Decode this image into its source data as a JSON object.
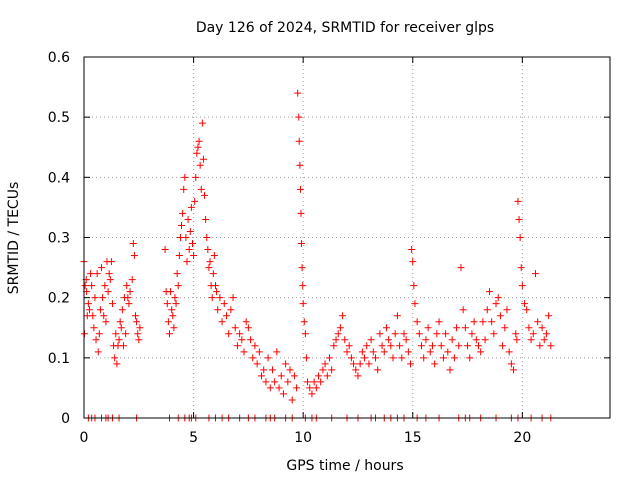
{
  "chart_data": {
    "type": "scatter",
    "title": "Day 126 of 2024, SRMTID for receiver glps",
    "xlabel": "GPS time / hours",
    "ylabel": "SRMTID / TECUs",
    "xlim": [
      0,
      24
    ],
    "ylim": [
      0,
      0.6
    ],
    "xticks": [
      0,
      5,
      10,
      15,
      20
    ],
    "xtick_labels": [
      "0",
      "5",
      "10",
      "15",
      "20"
    ],
    "yticks": [
      0,
      0.1,
      0.2,
      0.3,
      0.4,
      0.5,
      0.6
    ],
    "ytick_labels": [
      "0",
      "0.1",
      "0.2",
      "0.3",
      "0.4",
      "0.5",
      "0.6"
    ],
    "grid": true,
    "marker": "+",
    "color": "#ff0000",
    "series": [
      {
        "name": "SRMTID",
        "x": [
          0.0,
          0.02,
          0.05,
          0.1,
          0.12,
          0.15,
          0.2,
          0.25,
          0.3,
          0.35,
          0.4,
          0.45,
          0.5,
          0.55,
          0.6,
          0.65,
          0.7,
          0.75,
          0.8,
          0.85,
          0.9,
          0.95,
          1.0,
          1.05,
          1.1,
          1.15,
          1.2,
          1.25,
          1.3,
          1.35,
          1.4,
          1.45,
          1.5,
          1.55,
          1.6,
          1.65,
          1.7,
          1.75,
          1.8,
          1.85,
          1.9,
          1.95,
          2.0,
          2.05,
          2.1,
          2.2,
          2.25,
          2.3,
          2.35,
          2.4,
          2.45,
          2.5,
          2.55,
          3.7,
          3.75,
          3.8,
          3.85,
          3.9,
          3.95,
          4.0,
          4.05,
          4.1,
          4.15,
          4.2,
          4.25,
          4.3,
          4.35,
          4.4,
          4.45,
          4.5,
          4.55,
          4.6,
          4.65,
          4.7,
          4.75,
          4.8,
          4.85,
          4.9,
          4.95,
          5.0,
          5.05,
          5.1,
          5.15,
          5.2,
          5.25,
          5.3,
          5.35,
          5.4,
          5.45,
          5.5,
          5.55,
          5.6,
          5.65,
          5.7,
          5.75,
          5.8,
          5.85,
          5.9,
          5.95,
          6.0,
          6.05,
          6.1,
          6.2,
          6.3,
          6.4,
          6.5,
          6.6,
          6.7,
          6.8,
          6.9,
          7.0,
          7.1,
          7.2,
          7.3,
          7.4,
          7.5,
          7.6,
          7.7,
          7.8,
          7.9,
          8.0,
          8.1,
          8.2,
          8.3,
          8.4,
          8.5,
          8.6,
          8.7,
          8.8,
          8.9,
          9.0,
          9.1,
          9.2,
          9.3,
          9.4,
          9.5,
          9.6,
          9.7,
          9.75,
          9.8,
          9.82,
          9.85,
          9.88,
          9.9,
          9.92,
          9.95,
          9.98,
          10.0,
          10.05,
          10.1,
          10.15,
          10.2,
          10.3,
          10.4,
          10.5,
          10.6,
          10.7,
          10.8,
          10.9,
          11.0,
          11.1,
          11.2,
          11.3,
          11.4,
          11.5,
          11.6,
          11.7,
          11.8,
          11.9,
          12.0,
          12.1,
          12.2,
          12.3,
          12.4,
          12.5,
          12.6,
          12.7,
          12.8,
          12.9,
          13.0,
          13.1,
          13.2,
          13.3,
          13.4,
          13.5,
          13.6,
          13.7,
          13.8,
          13.9,
          14.0,
          14.1,
          14.2,
          14.3,
          14.4,
          14.5,
          14.6,
          14.7,
          14.8,
          14.9,
          14.95,
          15.0,
          15.05,
          15.1,
          15.2,
          15.3,
          15.4,
          15.5,
          15.6,
          15.7,
          15.8,
          15.9,
          16.0,
          16.1,
          16.2,
          16.3,
          16.4,
          16.5,
          16.6,
          16.7,
          16.8,
          16.9,
          17.0,
          17.1,
          17.2,
          17.3,
          17.4,
          17.5,
          17.6,
          17.7,
          17.8,
          17.9,
          18.0,
          18.1,
          18.2,
          18.3,
          18.4,
          18.5,
          18.6,
          18.7,
          18.8,
          18.9,
          19.0,
          19.1,
          19.2,
          19.3,
          19.4,
          19.5,
          19.6,
          19.7,
          19.75,
          19.8,
          19.85,
          19.9,
          19.95,
          20.0,
          20.1,
          20.2,
          20.3,
          20.4,
          20.5,
          20.6,
          20.7,
          20.8,
          20.9,
          21.0,
          21.1,
          21.2,
          21.3
        ],
        "y": [
          0.26,
          0.14,
          0.22,
          0.23,
          0.21,
          0.17,
          0.19,
          0.18,
          0.24,
          0.22,
          0.17,
          0.15,
          0.2,
          0.13,
          0.24,
          0.11,
          0.14,
          0.18,
          0.25,
          0.2,
          0.17,
          0.22,
          0.16,
          0.26,
          0.21,
          0.24,
          0.23,
          0.26,
          0.19,
          0.12,
          0.1,
          0.14,
          0.09,
          0.12,
          0.13,
          0.16,
          0.15,
          0.18,
          0.12,
          0.2,
          0.14,
          0.22,
          0.2,
          0.19,
          0.21,
          0.23,
          0.29,
          0.27,
          0.17,
          0.16,
          0.14,
          0.13,
          0.15,
          0.28,
          0.21,
          0.19,
          0.16,
          0.14,
          0.21,
          0.18,
          0.17,
          0.15,
          0.2,
          0.19,
          0.24,
          0.22,
          0.27,
          0.3,
          0.32,
          0.34,
          0.38,
          0.4,
          0.3,
          0.26,
          0.33,
          0.28,
          0.31,
          0.35,
          0.29,
          0.27,
          0.36,
          0.4,
          0.44,
          0.45,
          0.46,
          0.42,
          0.38,
          0.49,
          0.43,
          0.37,
          0.33,
          0.3,
          0.28,
          0.25,
          0.26,
          0.22,
          0.2,
          0.24,
          0.27,
          0.22,
          0.21,
          0.18,
          0.2,
          0.16,
          0.19,
          0.17,
          0.14,
          0.18,
          0.2,
          0.15,
          0.12,
          0.14,
          0.13,
          0.11,
          0.16,
          0.15,
          0.13,
          0.1,
          0.12,
          0.09,
          0.11,
          0.07,
          0.08,
          0.06,
          0.1,
          0.05,
          0.08,
          0.06,
          0.11,
          0.05,
          0.07,
          0.04,
          0.09,
          0.06,
          0.08,
          0.03,
          0.07,
          0.05,
          0.54,
          0.5,
          0.46,
          0.42,
          0.38,
          0.34,
          0.29,
          0.25,
          0.22,
          0.19,
          0.16,
          0.14,
          0.1,
          0.06,
          0.05,
          0.04,
          0.06,
          0.05,
          0.07,
          0.06,
          0.08,
          0.09,
          0.07,
          0.1,
          0.08,
          0.12,
          0.13,
          0.14,
          0.15,
          0.17,
          0.13,
          0.11,
          0.12,
          0.1,
          0.09,
          0.08,
          0.07,
          0.09,
          0.11,
          0.1,
          0.12,
          0.09,
          0.13,
          0.11,
          0.1,
          0.08,
          0.14,
          0.12,
          0.11,
          0.15,
          0.13,
          0.12,
          0.1,
          0.14,
          0.17,
          0.12,
          0.1,
          0.14,
          0.13,
          0.11,
          0.09,
          0.28,
          0.26,
          0.22,
          0.19,
          0.16,
          0.14,
          0.12,
          0.1,
          0.13,
          0.15,
          0.11,
          0.12,
          0.09,
          0.14,
          0.16,
          0.12,
          0.1,
          0.14,
          0.11,
          0.08,
          0.13,
          0.1,
          0.15,
          0.12,
          0.25,
          0.18,
          0.15,
          0.12,
          0.1,
          0.14,
          0.16,
          0.13,
          0.12,
          0.11,
          0.16,
          0.13,
          0.18,
          0.21,
          0.16,
          0.14,
          0.19,
          0.2,
          0.17,
          0.12,
          0.15,
          0.18,
          0.11,
          0.09,
          0.08,
          0.14,
          0.13,
          0.36,
          0.33,
          0.3,
          0.25,
          0.22,
          0.19,
          0.18,
          0.15,
          0.13,
          0.14,
          0.24,
          0.16,
          0.12,
          0.15,
          0.13,
          0.14,
          0.17,
          0.12
        ]
      },
      {
        "name": "zero-baseline",
        "x": [
          0.2,
          0.35,
          0.5,
          0.8,
          1.0,
          1.1,
          1.3,
          1.6,
          2.4,
          3.9,
          4.3,
          4.6,
          4.8,
          4.9,
          5.1,
          5.7,
          6.0,
          6.3,
          6.6,
          7.1,
          7.5,
          7.8,
          8.3,
          8.5,
          8.7,
          9.2,
          9.5,
          10.1,
          10.4,
          10.6,
          11.3,
          12.0,
          12.5,
          13.1,
          13.3,
          13.7,
          14.0,
          14.3,
          14.6,
          15.2,
          15.6,
          16.2,
          17.1,
          17.4,
          17.6,
          18.1,
          18.8,
          19.5,
          19.8,
          20.4,
          20.9,
          21.3
        ],
        "y": [
          0,
          0,
          0,
          0,
          0,
          0,
          0,
          0,
          0,
          0,
          0,
          0,
          0,
          0,
          0,
          0,
          0,
          0,
          0,
          0,
          0,
          0,
          0,
          0,
          0,
          0,
          0,
          0,
          0,
          0,
          0,
          0,
          0,
          0,
          0,
          0,
          0,
          0,
          0,
          0,
          0,
          0,
          0,
          0,
          0,
          0,
          0,
          0,
          0,
          0,
          0,
          0
        ]
      }
    ]
  }
}
